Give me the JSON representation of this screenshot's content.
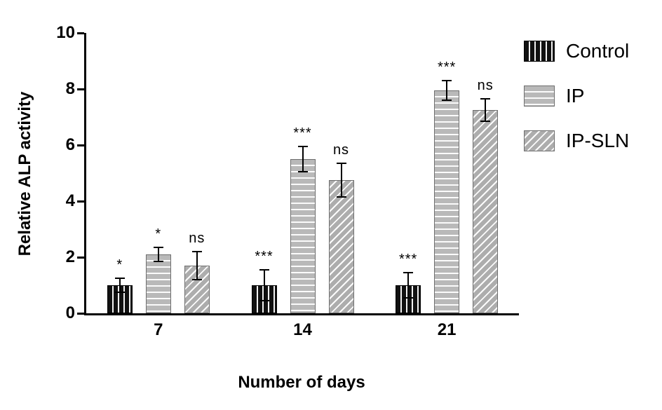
{
  "chart_data": {
    "type": "bar",
    "title": "",
    "xlabel": "Number of days",
    "ylabel": "Relative ALP activity",
    "categories": [
      "7",
      "14",
      "21"
    ],
    "ylim": [
      0,
      10
    ],
    "yticks": [
      0,
      2,
      4,
      6,
      8,
      10
    ],
    "grid": false,
    "legend_position": "top-right",
    "series": [
      {
        "name": "Control",
        "pattern": "black-vertical-stripes",
        "values": [
          1.0,
          1.0,
          1.0
        ],
        "errors": [
          0.25,
          0.55,
          0.45
        ],
        "annotations": [
          "*",
          "***",
          "***"
        ]
      },
      {
        "name": "IP",
        "pattern": "gray-horizontal-stripes",
        "values": [
          2.1,
          5.5,
          7.95
        ],
        "errors": [
          0.25,
          0.45,
          0.35
        ],
        "annotations": [
          "*",
          "***",
          "***"
        ]
      },
      {
        "name": "IP-SLN",
        "pattern": "gray-diagonal-stripes",
        "values": [
          1.7,
          4.75,
          7.25
        ],
        "errors": [
          0.5,
          0.6,
          0.4
        ],
        "annotations": [
          "ns",
          "ns",
          "ns"
        ]
      }
    ],
    "colors": {
      "control_fill": "#111111",
      "ip_fill": "#b9b9b9",
      "ipsln_fill": "#adadad",
      "stripe": "#fbfbfb",
      "axis": "#000000",
      "error_bar": "#000000"
    }
  }
}
